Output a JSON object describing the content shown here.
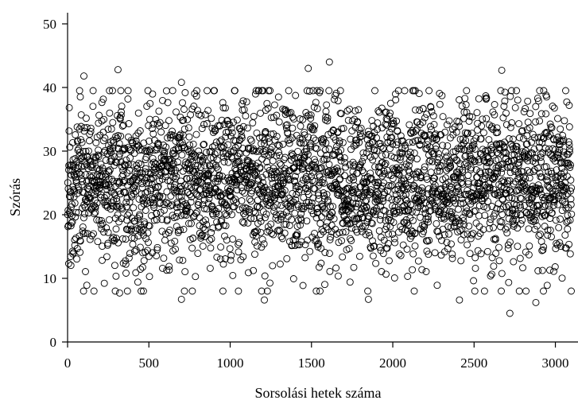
{
  "chart_data": {
    "type": "scatter",
    "xlabel": "Sorsolási hetek száma",
    "ylabel": "Szórás",
    "xlim": [
      0,
      3100
    ],
    "ylim": [
      0,
      50
    ],
    "x_ticks": [
      0,
      500,
      1000,
      1500,
      2000,
      2500,
      3000
    ],
    "y_ticks": [
      0,
      10,
      20,
      30,
      40,
      50
    ],
    "x_tick_labels": [
      "0",
      "500",
      "1000",
      "1500",
      "2000",
      "2500",
      "3000"
    ],
    "y_tick_labels": [
      "0",
      "10",
      "20",
      "30",
      "40",
      "50"
    ],
    "grid": false,
    "marker": "open-circle",
    "marker_color": "#000000",
    "n_points": 3100,
    "distribution": {
      "mean": 25.2,
      "sd": 6.4,
      "min": 4.5,
      "max": 44.0
    },
    "seed": 20231,
    "notable_points": [
      {
        "x": 100,
        "y": 41.8
      },
      {
        "x": 310,
        "y": 42.8
      },
      {
        "x": 700,
        "y": 40.8
      },
      {
        "x": 1480,
        "y": 43.0
      },
      {
        "x": 1610,
        "y": 44.0
      },
      {
        "x": 2670,
        "y": 42.7
      },
      {
        "x": 2720,
        "y": 4.5
      },
      {
        "x": 2410,
        "y": 6.6
      },
      {
        "x": 2880,
        "y": 6.2
      },
      {
        "x": 1210,
        "y": 6.6
      },
      {
        "x": 700,
        "y": 6.7
      },
      {
        "x": 1850,
        "y": 6.7
      },
      {
        "x": 320,
        "y": 7.7
      }
    ]
  }
}
